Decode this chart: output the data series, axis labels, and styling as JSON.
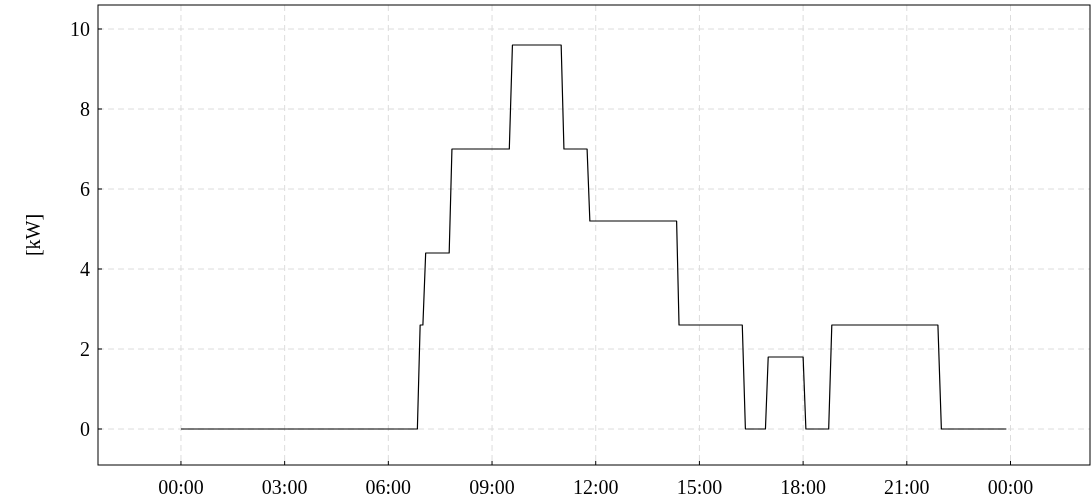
{
  "chart_data": {
    "type": "line",
    "ylabel": "[kW]",
    "x": [
      0,
      6.84,
      6.92,
      7.0,
      7.08,
      7.76,
      7.84,
      9.5,
      9.59,
      11.0,
      11.08,
      11.75,
      11.83,
      14.34,
      14.41,
      16.24,
      16.33,
      16.91,
      16.99,
      18.0,
      18.08,
      18.74,
      18.83,
      21.9,
      22.0,
      23.88
    ],
    "series": [
      {
        "color": "#000000",
        "values": [
          0,
          0,
          2.6,
          2.6,
          4.4,
          4.4,
          7,
          7,
          9.6,
          9.6,
          7,
          7,
          5.2,
          5.2,
          2.6,
          2.6,
          0,
          0,
          1.8,
          1.8,
          0,
          0,
          2.6,
          2.6,
          0,
          0
        ]
      }
    ],
    "xlim": [
      -2.4,
      26.3
    ],
    "xticks": [
      {
        "value": 0,
        "label": "00:00"
      },
      {
        "value": 3,
        "label": "03:00"
      },
      {
        "value": 6,
        "label": "06:00"
      },
      {
        "value": 9,
        "label": "09:00"
      },
      {
        "value": 12,
        "label": "12:00"
      },
      {
        "value": 15,
        "label": "15:00"
      },
      {
        "value": 18,
        "label": "18:00"
      },
      {
        "value": 21,
        "label": "21:00"
      },
      {
        "value": 24,
        "label": "00:00"
      }
    ],
    "ylim": [
      -0.9,
      10.6
    ],
    "yticks": [
      0,
      2,
      4,
      6,
      8,
      10
    ],
    "grid": true,
    "marker": "none",
    "line_style": "solid"
  }
}
